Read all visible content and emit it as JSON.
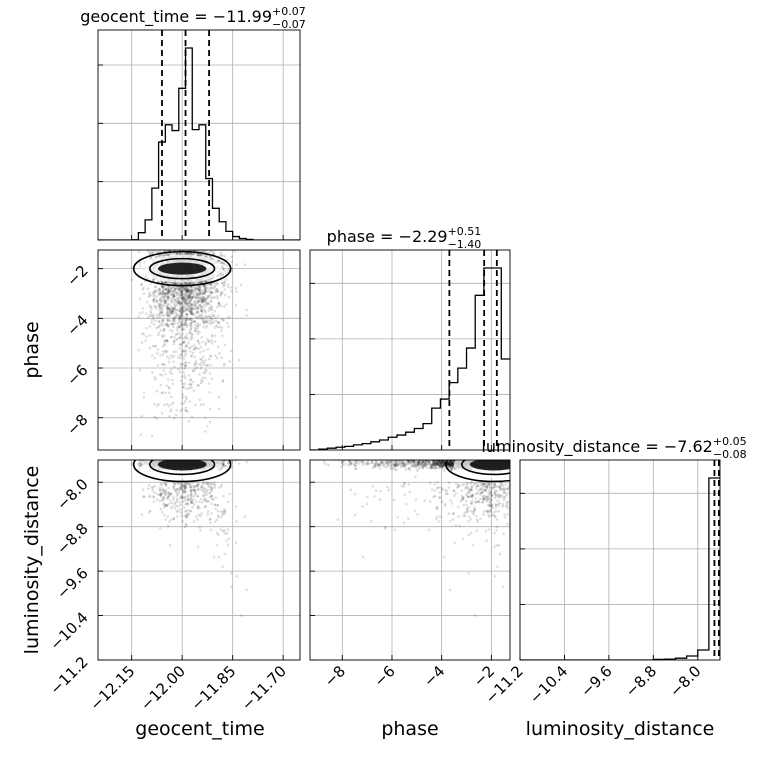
{
  "chart_data": {
    "type": "corner",
    "parameters": [
      "geocent_time",
      "phase",
      "luminosity_distance"
    ],
    "axis_labels": {
      "geocent_time": "geocent_time",
      "phase": "phase",
      "luminosity_distance": "luminosity_distance"
    },
    "ranges": {
      "geocent_time": [
        -12.25,
        -11.65
      ],
      "phase": [
        -9.3,
        -1.25
      ],
      "luminosity_distance": [
        -11.2,
        -7.6
      ]
    },
    "ticks": {
      "geocent_time": [
        -12.15,
        -12.0,
        -11.85,
        -11.7
      ],
      "phase": [
        -8,
        -6,
        -4,
        -2
      ],
      "luminosity_distance": [
        -11.2,
        -10.4,
        -9.6,
        -8.8,
        -8.0
      ]
    },
    "tick_labels": {
      "geocent_time": [
        "−12.15",
        "−12.00",
        "−11.85",
        "−11.70"
      ],
      "phase": [
        "−8",
        "−6",
        "−4",
        "−2"
      ],
      "luminosity_distance": [
        "−11.2",
        "−10.4",
        "−9.6",
        "−8.8",
        "−8.0"
      ]
    },
    "titles": [
      {
        "param": "geocent_time",
        "name": "geocent_time",
        "eq": " = −11.99",
        "plus": "+0.07",
        "minus": "−0.07"
      },
      {
        "param": "phase",
        "name": "phase",
        "eq": " = −2.29",
        "plus": "+0.51",
        "minus": "−1.40"
      },
      {
        "param": "luminosity_distance",
        "name": "luminosity_distance",
        "eq": " = −7.62",
        "plus": "+0.05",
        "minus": "−0.08"
      }
    ],
    "quantiles": {
      "geocent_time": [
        -12.06,
        -11.99,
        -11.92
      ],
      "phase": [
        -3.69,
        -2.29,
        -1.78
      ],
      "luminosity_distance": [
        -7.7,
        -7.62,
        -7.57
      ]
    },
    "histograms": {
      "geocent_time": {
        "bin_edges": [
          -12.25,
          -12.23,
          -12.21,
          -12.19,
          -12.17,
          -12.15,
          -12.13,
          -12.11,
          -12.09,
          -12.07,
          -12.05,
          -12.03,
          -12.01,
          -11.99,
          -11.97,
          -11.95,
          -11.93,
          -11.91,
          -11.89,
          -11.87,
          -11.85,
          -11.83,
          -11.81,
          -11.79,
          -11.77,
          -11.75,
          -11.73,
          -11.71,
          -11.69,
          -11.67,
          -11.65
        ],
        "counts": [
          0,
          0,
          0,
          0,
          0,
          1,
          38,
          105,
          270,
          510,
          600,
          570,
          790,
          1000,
          575,
          600,
          320,
          165,
          95,
          45,
          18,
          8,
          3,
          0,
          0,
          0,
          0,
          0,
          0,
          0
        ]
      },
      "phase": {
        "bin_edges": [
          -9.3,
          -8.95,
          -8.6,
          -8.25,
          -7.9,
          -7.55,
          -7.2,
          -6.85,
          -6.5,
          -6.15,
          -5.8,
          -5.45,
          -5.1,
          -4.75,
          -4.4,
          -4.05,
          -3.7,
          -3.35,
          -3.0,
          -2.65,
          -2.3,
          -1.95,
          -1.6,
          -1.25
        ],
        "counts": [
          0,
          5,
          10,
          15,
          20,
          28,
          35,
          45,
          55,
          70,
          82,
          98,
          118,
          145,
          230,
          280,
          370,
          450,
          560,
          850,
          1000,
          1000,
          500
        ]
      },
      "luminosity_distance": {
        "bin_edges": [
          -11.2,
          -11.0,
          -10.8,
          -10.6,
          -10.4,
          -10.2,
          -10.0,
          -9.8,
          -9.6,
          -9.4,
          -9.2,
          -9.0,
          -8.8,
          -8.6,
          -8.4,
          -8.2,
          -8.0,
          -7.8,
          -7.6
        ],
        "counts": [
          0,
          0,
          0,
          0,
          0,
          0,
          0,
          0,
          0,
          0,
          0,
          0,
          3,
          5,
          10,
          22,
          55,
          1000
        ]
      }
    },
    "scatter_color": "#000000",
    "grid": true
  }
}
